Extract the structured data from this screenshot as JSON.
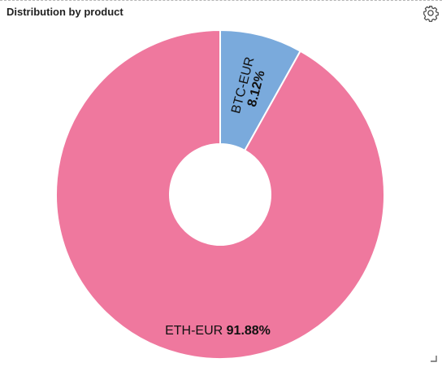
{
  "panel": {
    "title": "Distribution by product"
  },
  "icons": {
    "settings": "gear-icon",
    "resize": "resize-handle-icon"
  },
  "chart_data": {
    "type": "pie",
    "variant": "donut",
    "title": "Distribution by product",
    "legend": "none",
    "slices": [
      {
        "label": "BTC-EUR",
        "value": 8.12,
        "display": "8.12%",
        "color": "#7aaadc"
      },
      {
        "label": "ETH-EUR",
        "value": 91.88,
        "display": "91.88%",
        "color": "#ef789e"
      }
    ]
  }
}
